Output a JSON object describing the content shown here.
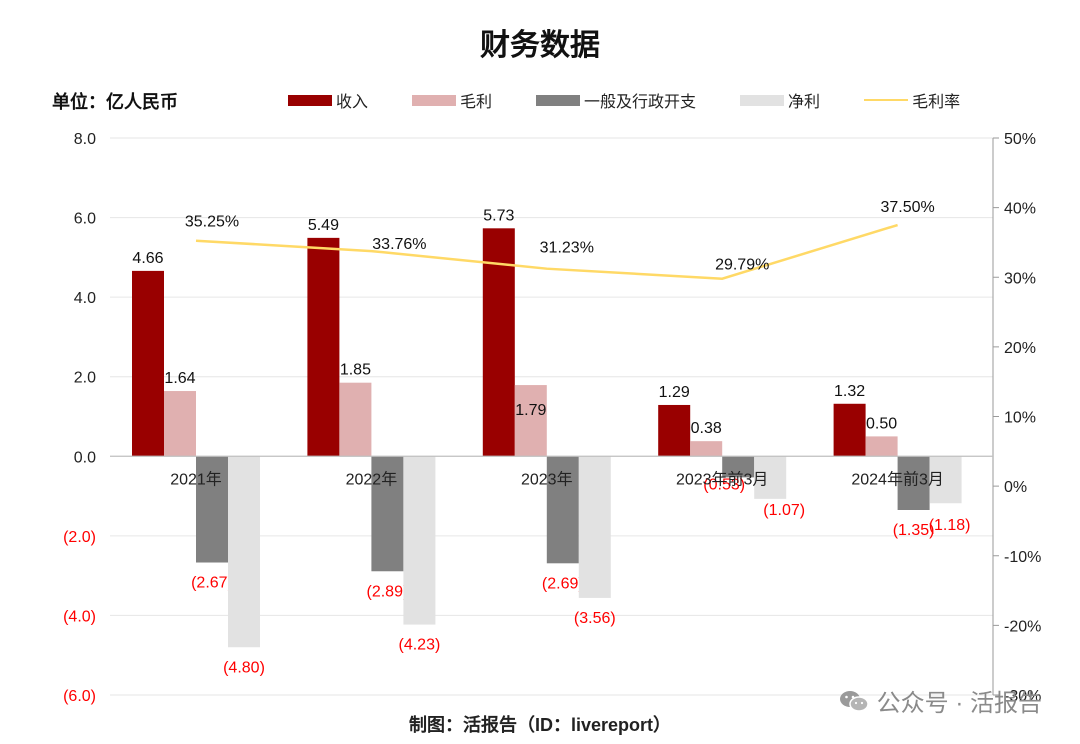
{
  "title": "财务数据",
  "unit_label": "单位：亿人民币",
  "source": "制图：活报告（ID：livereport）",
  "watermark": "公众号 · 活报告",
  "watermark_icon": "wechat-icon",
  "colors": {
    "revenue": "#990000",
    "gross_profit": "#e0b0b0",
    "ga_expense": "#808080",
    "net_profit": "#e2e2e2",
    "margin_line": "#ffd966",
    "negative_label": "#ff0000"
  },
  "chart_data": {
    "type": "bar",
    "categories": [
      "2021年",
      "2022年",
      "2023年",
      "2023年前3月",
      "2024年前3月"
    ],
    "series": [
      {
        "name": "收入",
        "values": [
          4.66,
          5.49,
          5.73,
          1.29,
          1.32
        ],
        "labels": [
          "4.66",
          "5.49",
          "5.73",
          "1.29",
          "1.32"
        ]
      },
      {
        "name": "毛利",
        "values": [
          1.64,
          1.85,
          1.79,
          0.38,
          0.5
        ],
        "labels": [
          "1.64",
          "1.85",
          "1.79",
          "0.38",
          "0.50"
        ]
      },
      {
        "name": "一般及行政开支",
        "values": [
          -2.67,
          -2.89,
          -2.69,
          -0.53,
          -1.35
        ],
        "labels": [
          "(2.67)",
          "(2.89)",
          "(2.69)",
          "(0.53)",
          "(1.35)"
        ]
      },
      {
        "name": "净利",
        "values": [
          -4.8,
          -4.23,
          -3.56,
          -1.07,
          -1.18
        ],
        "labels": [
          "(4.80)",
          "(4.23)",
          "(3.56)",
          "(1.07)",
          "(1.18)"
        ]
      }
    ],
    "line_series": {
      "name": "毛利率",
      "values": [
        35.25,
        33.76,
        31.23,
        29.79,
        37.5
      ],
      "labels": [
        "35.25%",
        "33.76%",
        "31.23%",
        "29.79%",
        "37.50%"
      ]
    },
    "y_left": {
      "min": -6,
      "max": 8,
      "ticks": [
        8,
        6,
        4,
        2,
        0,
        -2,
        -4,
        -6
      ],
      "tick_labels": [
        "8.0",
        "6.0",
        "4.0",
        "2.0",
        "0.0",
        "(2.0)",
        "(4.0)",
        "(6.0)"
      ]
    },
    "y_right": {
      "min": -30,
      "max": 50,
      "ticks": [
        50,
        40,
        30,
        20,
        10,
        0,
        -10,
        -20,
        -30
      ],
      "tick_labels": [
        "50%",
        "40%",
        "30%",
        "20%",
        "10%",
        "0%",
        "-10%",
        "-20%",
        "-30%"
      ]
    },
    "gridlines": true,
    "legend_position": "top"
  }
}
